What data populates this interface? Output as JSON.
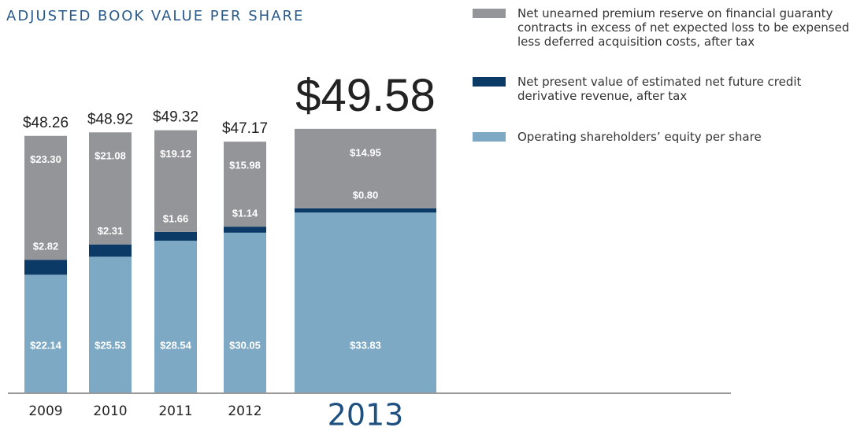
{
  "chart_data": {
    "type": "bar",
    "stacked": true,
    "title": "ADJUSTED BOOK VALUE PER SHARE",
    "categories": [
      "2009",
      "2010",
      "2011",
      "2012",
      "2013"
    ],
    "series": [
      {
        "name": "Net unearned premium reserve on financial guaranty contracts in excess of net expected loss to be expensed less deferred acquisition costs, after tax",
        "color": "#939598",
        "values": [
          23.3,
          21.08,
          19.12,
          15.98,
          14.95
        ],
        "value_labels": [
          "$23.30",
          "$21.08",
          "$19.12",
          "$15.98",
          "$14.95"
        ]
      },
      {
        "name": "Net present value of estimated net future credit derivative revenue, after tax",
        "color": "#0b3a66",
        "values": [
          2.82,
          2.31,
          1.66,
          1.14,
          0.8
        ],
        "value_labels": [
          "$2.82",
          "$2.31",
          "$1.66",
          "$1.14",
          "$0.80"
        ]
      },
      {
        "name": "Operating shareholders’ equity per share",
        "color": "#7ea9c4",
        "values": [
          22.14,
          25.53,
          28.54,
          30.05,
          33.83
        ],
        "value_labels": [
          "$22.14",
          "$25.53",
          "$28.54",
          "$30.05",
          "$33.83"
        ]
      }
    ],
    "totals": {
      "values": [
        48.26,
        48.92,
        49.32,
        47.17,
        49.58
      ],
      "value_labels": [
        "$48.26",
        "$48.92",
        "$49.32",
        "$47.17",
        "$49.58"
      ]
    }
  }
}
